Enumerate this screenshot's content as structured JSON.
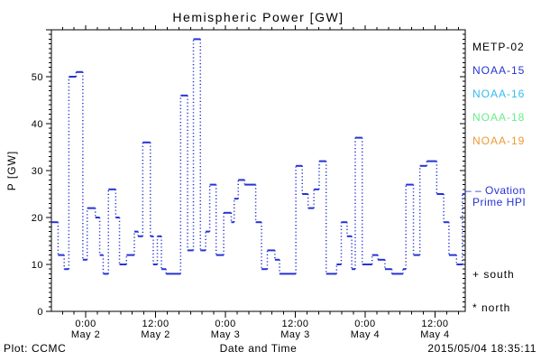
{
  "colors": {
    "series": "#2533d4",
    "axis": "#000000",
    "background": "#ffffff",
    "metp02": "#000000",
    "noaa15": "#2533d4",
    "noaa16": "#33bbee",
    "noaa18": "#66ee88",
    "noaa19": "#ee9933"
  },
  "legend": {
    "items": [
      {
        "label": "METP-02",
        "color": "#000000"
      },
      {
        "label": "NOAA-15",
        "color": "#2533d4"
      },
      {
        "label": "NOAA-16",
        "color": "#33bbee"
      },
      {
        "label": "NOAA-18",
        "color": "#66ee88"
      },
      {
        "label": "NOAA-19",
        "color": "#ee9933"
      }
    ],
    "ovation": {
      "marker": "– –",
      "line1": " Ovation",
      "line2": "Prime HPI"
    }
  },
  "annotations": {
    "south": "+ south",
    "north": "* north"
  },
  "footer": {
    "left": "Plot: CCMC",
    "timestamp": "2015/05/04 18:35:11"
  },
  "chart_data": {
    "type": "line",
    "subtype": "step-segments-dotted-connectors",
    "title": "Hemispheric Power [GW]",
    "xlabel": "Date and Time",
    "ylabel": "P [GW]",
    "x_unit": "hours from 2015-05-02 00:00",
    "x_range": [
      -5.9,
      65.2
    ],
    "y_range": [
      0,
      60
    ],
    "y_ticks": [
      0,
      10,
      20,
      30,
      40,
      50
    ],
    "y_minor_step": 1,
    "x_minor_step_hours": 2,
    "x_ticks": [
      {
        "h": 0,
        "time": "0:00",
        "date": "May 2"
      },
      {
        "h": 12,
        "time": "12:00",
        "date": "May 2"
      },
      {
        "h": 24,
        "time": "0:00",
        "date": "May 3"
      },
      {
        "h": 36,
        "time": "12:00",
        "date": "May 3"
      },
      {
        "h": 48,
        "time": "0:00",
        "date": "May 4"
      },
      {
        "h": 60,
        "time": "12:00",
        "date": "May 4"
      }
    ],
    "series_name": "Ovation Prime HPI",
    "segments": [
      [
        -5.9,
        -4.75,
        19
      ],
      [
        -4.75,
        -3.7,
        12
      ],
      [
        -3.7,
        -2.9,
        9
      ],
      [
        -2.9,
        -1.65,
        50
      ],
      [
        -1.65,
        -0.5,
        51
      ],
      [
        -0.5,
        0.25,
        11
      ],
      [
        0.25,
        1.65,
        22
      ],
      [
        1.65,
        2.4,
        20
      ],
      [
        2.4,
        3.0,
        12
      ],
      [
        3.0,
        3.9,
        8
      ],
      [
        3.9,
        5.15,
        26
      ],
      [
        5.15,
        5.8,
        20
      ],
      [
        5.8,
        7.0,
        10
      ],
      [
        7.0,
        8.35,
        12
      ],
      [
        8.35,
        9.0,
        17
      ],
      [
        9.0,
        9.8,
        16
      ],
      [
        9.8,
        11.1,
        36
      ],
      [
        11.1,
        11.6,
        16
      ],
      [
        11.6,
        12.3,
        10
      ],
      [
        12.3,
        13.0,
        16
      ],
      [
        13.0,
        13.8,
        9
      ],
      [
        13.8,
        16.3,
        8
      ],
      [
        16.3,
        17.5,
        46
      ],
      [
        17.5,
        18.5,
        13
      ],
      [
        18.5,
        19.7,
        58
      ],
      [
        19.7,
        20.6,
        13
      ],
      [
        20.6,
        21.3,
        17
      ],
      [
        21.3,
        22.4,
        27
      ],
      [
        22.4,
        23.7,
        12
      ],
      [
        23.7,
        25.0,
        21
      ],
      [
        25.0,
        25.5,
        19
      ],
      [
        25.5,
        26.2,
        24
      ],
      [
        26.2,
        27.3,
        28
      ],
      [
        27.3,
        29.2,
        27
      ],
      [
        29.2,
        30.2,
        19
      ],
      [
        30.2,
        31.2,
        9
      ],
      [
        31.2,
        32.5,
        13
      ],
      [
        32.5,
        33.3,
        11
      ],
      [
        33.3,
        36.1,
        8
      ],
      [
        36.1,
        37.2,
        31
      ],
      [
        37.2,
        38.2,
        25
      ],
      [
        38.2,
        39.2,
        22
      ],
      [
        39.2,
        40.1,
        26
      ],
      [
        40.1,
        41.3,
        32
      ],
      [
        41.3,
        43.1,
        8
      ],
      [
        43.1,
        43.9,
        10
      ],
      [
        43.9,
        44.9,
        19
      ],
      [
        44.9,
        45.7,
        16
      ],
      [
        45.7,
        46.3,
        9
      ],
      [
        46.3,
        47.5,
        37
      ],
      [
        47.5,
        49.2,
        10
      ],
      [
        49.2,
        50.2,
        12
      ],
      [
        50.2,
        51.4,
        11
      ],
      [
        51.4,
        52.6,
        9
      ],
      [
        52.6,
        54.5,
        8
      ],
      [
        54.5,
        55.0,
        9
      ],
      [
        55.0,
        56.3,
        27
      ],
      [
        56.3,
        57.4,
        12
      ],
      [
        57.4,
        58.6,
        31
      ],
      [
        58.6,
        60.3,
        32
      ],
      [
        60.3,
        61.5,
        25
      ],
      [
        61.5,
        62.4,
        19
      ],
      [
        62.4,
        63.7,
        12
      ],
      [
        63.7,
        64.7,
        10
      ],
      [
        64.7,
        65.2,
        25
      ]
    ],
    "legend_position": "right",
    "grid": false
  }
}
